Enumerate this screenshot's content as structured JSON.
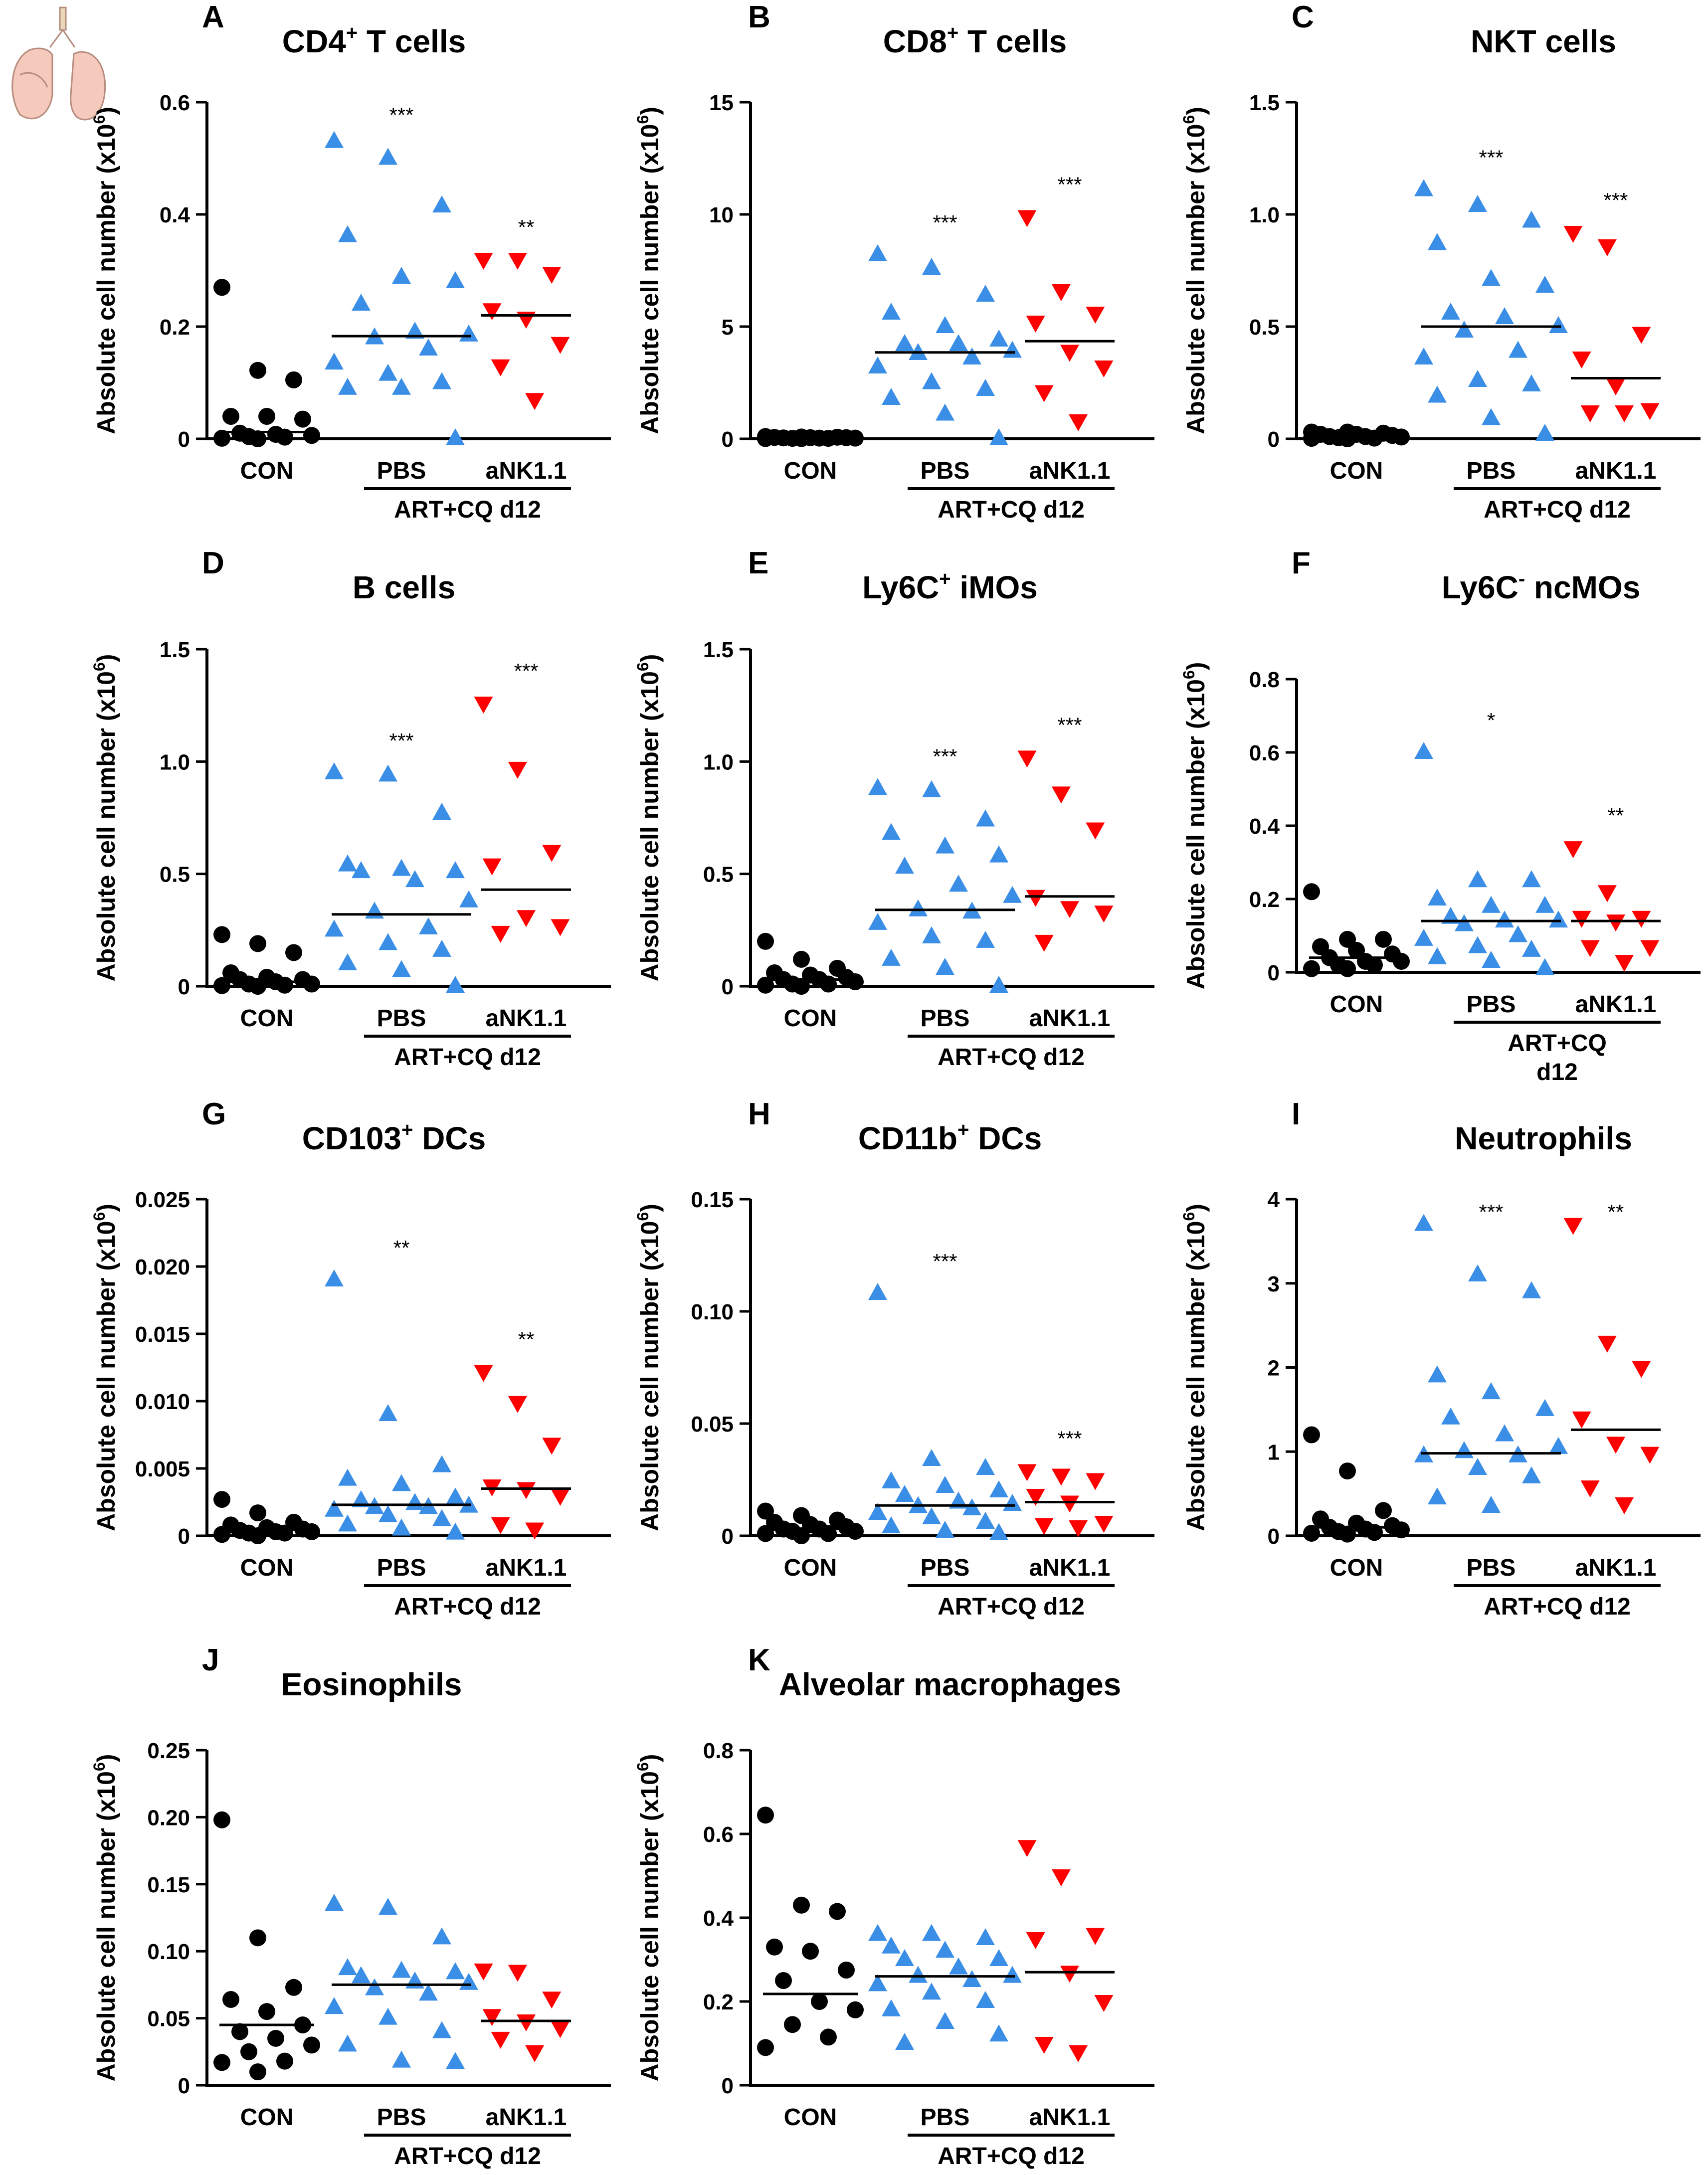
{
  "figure": {
    "shared": {
      "ylabel_main": "Absolute cell number (x10",
      "ylabel_sup": "6",
      "ylabel_close": ")",
      "group_labels": [
        "CON",
        "PBS",
        "aNK1.1"
      ],
      "treatment_label": "ART+CQ d12",
      "colors": {
        "con": "#000000",
        "pbs": "#3a8ee6",
        "nk": "#ff0000"
      },
      "icon": "lung-icon"
    }
  },
  "chart_data": [
    {
      "type": "scatter",
      "letter": "A",
      "title": "CD4+ T cells",
      "title_parts": [
        "CD4",
        "+",
        " T cells"
      ],
      "ylim": [
        0,
        0.6
      ],
      "yticks": [
        0,
        0.2,
        0.4,
        0.6
      ],
      "ytick_labels": [
        "0",
        "0.2",
        "0.4",
        "0.6"
      ],
      "categories": [
        "CON",
        "PBS",
        "aNK1.1"
      ],
      "treatment": "ART+CQ d12",
      "treatment_lines": [
        "ART+CQ d12"
      ],
      "series": [
        {
          "name": "CON",
          "marker": "circle",
          "median": 0.012,
          "values": [
            0.27,
            0.122,
            0.105,
            0.04,
            0.04,
            0.035,
            0.01,
            0.008,
            0.006,
            0.004,
            0.003,
            0.001,
            0.0
          ]
        },
        {
          "name": "PBS",
          "marker": "triangle-up",
          "median": 0.183,
          "values": [
            0.53,
            0.5,
            0.415,
            0.362,
            0.288,
            0.28,
            0.24,
            0.19,
            0.185,
            0.18,
            0.16,
            0.135,
            0.115,
            0.1,
            0.09,
            0.09,
            0.0
          ]
        },
        {
          "name": "aNK1.1",
          "marker": "triangle-down",
          "median": 0.22,
          "values": [
            0.32,
            0.32,
            0.295,
            0.23,
            0.215,
            0.17,
            0.13,
            0.07
          ]
        }
      ],
      "significance": [
        "",
        "***",
        "**"
      ]
    },
    {
      "type": "scatter",
      "letter": "B",
      "title": "CD8+ T cells",
      "title_parts": [
        "CD8",
        "+",
        " T cells"
      ],
      "ylim": [
        0,
        15
      ],
      "yticks": [
        0,
        5,
        10,
        15
      ],
      "ytick_labels": [
        "0",
        "5",
        "10",
        "15"
      ],
      "categories": [
        "CON",
        "PBS",
        "aNK1.1"
      ],
      "treatment": "ART+CQ d12",
      "treatment_lines": [
        "ART+CQ d12"
      ],
      "series": [
        {
          "name": "CON",
          "marker": "circle",
          "median": 0.05,
          "values": [
            0.1,
            0.08,
            0.07,
            0.06,
            0.05,
            0.05,
            0.04,
            0.03,
            0.03,
            0.02,
            0.02,
            0.01,
            0.01
          ]
        },
        {
          "name": "PBS",
          "marker": "triangle-up",
          "median": 3.85,
          "values": [
            8.2,
            7.6,
            6.4,
            5.6,
            5.0,
            4.4,
            4.2,
            4.2,
            3.9,
            3.8,
            3.6,
            3.2,
            2.5,
            2.2,
            1.8,
            1.1,
            0.0
          ]
        },
        {
          "name": "aNK1.1",
          "marker": "triangle-down",
          "median": 4.35,
          "values": [
            9.9,
            6.6,
            5.6,
            5.2,
            3.9,
            3.2,
            2.1,
            0.8
          ]
        }
      ],
      "significance": [
        "",
        "***",
        "***"
      ]
    },
    {
      "type": "scatter",
      "letter": "C",
      "title": "NKT cells",
      "title_parts": [
        "NKT cells",
        "",
        ""
      ],
      "ylim": [
        0,
        1.5
      ],
      "yticks": [
        0,
        0.5,
        1.0,
        1.5
      ],
      "ytick_labels": [
        "0",
        "0.5",
        "1.0",
        "1.5"
      ],
      "categories": [
        "CON",
        "PBS",
        "aNK1.1"
      ],
      "treatment": "ART+CQ d12",
      "treatment_lines": [
        "ART+CQ d12"
      ],
      "series": [
        {
          "name": "CON",
          "marker": "circle",
          "median": 0.01,
          "values": [
            0.03,
            0.03,
            0.025,
            0.02,
            0.02,
            0.015,
            0.01,
            0.01,
            0.008,
            0.005,
            0.003,
            0.002,
            0.0
          ]
        },
        {
          "name": "PBS",
          "marker": "triangle-up",
          "median": 0.5,
          "values": [
            1.11,
            1.04,
            0.97,
            0.87,
            0.71,
            0.68,
            0.56,
            0.54,
            0.5,
            0.48,
            0.39,
            0.36,
            0.26,
            0.24,
            0.19,
            0.09,
            0.02
          ]
        },
        {
          "name": "aNK1.1",
          "marker": "triangle-down",
          "median": 0.27,
          "values": [
            0.92,
            0.86,
            0.47,
            0.36,
            0.24,
            0.13,
            0.12,
            0.12
          ]
        }
      ],
      "significance": [
        "",
        "***",
        "***"
      ]
    },
    {
      "type": "scatter",
      "letter": "D",
      "title": "B cells",
      "title_parts": [
        "B cells",
        "",
        ""
      ],
      "ylim": [
        0,
        1.5
      ],
      "yticks": [
        0,
        0.5,
        1.0,
        1.5
      ],
      "ytick_labels": [
        "0",
        "0.5",
        "1.0",
        "1.5"
      ],
      "categories": [
        "CON",
        "PBS",
        "aNK1.1"
      ],
      "treatment": "ART+CQ d12",
      "treatment_lines": [
        "ART+CQ d12"
      ],
      "series": [
        {
          "name": "CON",
          "marker": "circle",
          "median": 0.02,
          "values": [
            0.23,
            0.19,
            0.15,
            0.06,
            0.04,
            0.03,
            0.03,
            0.02,
            0.01,
            0.01,
            0.005,
            0.003,
            0.0
          ]
        },
        {
          "name": "PBS",
          "marker": "triangle-up",
          "median": 0.32,
          "values": [
            0.95,
            0.94,
            0.77,
            0.54,
            0.52,
            0.51,
            0.51,
            0.47,
            0.38,
            0.33,
            0.26,
            0.25,
            0.19,
            0.16,
            0.1,
            0.07,
            0.0
          ]
        },
        {
          "name": "aNK1.1",
          "marker": "triangle-down",
          "median": 0.43,
          "values": [
            1.26,
            0.97,
            0.6,
            0.54,
            0.31,
            0.27,
            0.24
          ]
        }
      ],
      "significance": [
        "",
        "***",
        "***"
      ]
    },
    {
      "type": "scatter",
      "letter": "E",
      "title": "Ly6C+ iMOs",
      "title_parts": [
        "Ly6C",
        "+",
        " iMOs"
      ],
      "ylim": [
        0,
        1.5
      ],
      "yticks": [
        0,
        0.5,
        1.0,
        1.5
      ],
      "ytick_labels": [
        "0",
        "0.5",
        "1.0",
        "1.5"
      ],
      "categories": [
        "CON",
        "PBS",
        "aNK1.1"
      ],
      "treatment": "ART+CQ d12",
      "treatment_lines": [
        "ART+CQ d12"
      ],
      "series": [
        {
          "name": "CON",
          "marker": "circle",
          "median": 0.03,
          "values": [
            0.2,
            0.12,
            0.08,
            0.06,
            0.05,
            0.04,
            0.03,
            0.03,
            0.02,
            0.01,
            0.01,
            0.005,
            0.0
          ]
        },
        {
          "name": "PBS",
          "marker": "triangle-up",
          "median": 0.34,
          "values": [
            0.88,
            0.87,
            0.74,
            0.68,
            0.62,
            0.58,
            0.53,
            0.45,
            0.4,
            0.34,
            0.33,
            0.28,
            0.22,
            0.2,
            0.12,
            0.08,
            0.0
          ]
        },
        {
          "name": "aNK1.1",
          "marker": "triangle-down",
          "median": 0.4,
          "values": [
            1.02,
            0.86,
            0.7,
            0.4,
            0.35,
            0.33,
            0.2
          ]
        }
      ],
      "significance": [
        "",
        "***",
        "***"
      ]
    },
    {
      "type": "scatter",
      "letter": "F",
      "title": "Ly6C- ncMOs",
      "title_parts": [
        "Ly6C",
        "-",
        " ncMOs"
      ],
      "ylim": [
        0,
        0.8
      ],
      "yticks": [
        0,
        0.2,
        0.4,
        0.6,
        0.8
      ],
      "ytick_labels": [
        "0",
        "0.2",
        "0.4",
        "0.6",
        "0.8"
      ],
      "categories": [
        "CON",
        "PBS",
        "aNK1.1"
      ],
      "treatment": "ART+CQ d12",
      "treatment_lines": [
        "ART+CQ",
        "d12"
      ],
      "series": [
        {
          "name": "CON",
          "marker": "circle",
          "median": 0.04,
          "values": [
            0.22,
            0.09,
            0.09,
            0.07,
            0.06,
            0.05,
            0.04,
            0.03,
            0.03,
            0.02,
            0.02,
            0.01,
            0.01
          ]
        },
        {
          "name": "PBS",
          "marker": "triangle-up",
          "median": 0.14,
          "values": [
            0.6,
            0.25,
            0.25,
            0.2,
            0.18,
            0.18,
            0.15,
            0.14,
            0.14,
            0.13,
            0.1,
            0.09,
            0.07,
            0.06,
            0.04,
            0.03,
            0.01
          ]
        },
        {
          "name": "aNK1.1",
          "marker": "triangle-down",
          "median": 0.14,
          "values": [
            0.34,
            0.22,
            0.15,
            0.15,
            0.14,
            0.07,
            0.07,
            0.03
          ]
        }
      ],
      "significance": [
        "",
        "*",
        "**"
      ]
    },
    {
      "type": "scatter",
      "letter": "G",
      "title": "CD103+ DCs",
      "title_parts": [
        "CD103",
        "+",
        " DCs"
      ],
      "ylim": [
        0,
        0.025
      ],
      "yticks": [
        0,
        0.005,
        0.01,
        0.015,
        0.02,
        0.025
      ],
      "ytick_labels": [
        "0",
        "0.005",
        "0.010",
        "0.015",
        "0.020",
        "0.025"
      ],
      "categories": [
        "CON",
        "PBS",
        "aNK1.1"
      ],
      "treatment": "ART+CQ d12",
      "treatment_lines": [
        "ART+CQ d12"
      ],
      "series": [
        {
          "name": "CON",
          "marker": "circle",
          "median": 0.0005,
          "values": [
            0.0027,
            0.0017,
            0.001,
            0.0008,
            0.0006,
            0.0005,
            0.0004,
            0.0003,
            0.0003,
            0.0002,
            0.0002,
            0.0001,
            0.0
          ]
        },
        {
          "name": "PBS",
          "marker": "triangle-up",
          "median": 0.0023,
          "values": [
            0.019,
            0.009,
            0.0052,
            0.0042,
            0.0038,
            0.0028,
            0.0026,
            0.0024,
            0.0022,
            0.0021,
            0.0021,
            0.0019,
            0.0015,
            0.0012,
            0.0008,
            0.0005,
            0.0002
          ]
        },
        {
          "name": "aNK1.1",
          "marker": "triangle-down",
          "median": 0.0035,
          "values": [
            0.0122,
            0.0099,
            0.0068,
            0.0037,
            0.0035,
            0.003,
            0.0009,
            0.0005
          ]
        }
      ],
      "significance": [
        "",
        "**",
        "**"
      ]
    },
    {
      "type": "scatter",
      "letter": "H",
      "title": "CD11b+ DCs",
      "title_parts": [
        "CD11b",
        "+",
        " DCs"
      ],
      "ylim": [
        0,
        0.15
      ],
      "yticks": [
        0,
        0.05,
        0.1,
        0.15
      ],
      "ytick_labels": [
        "0",
        "0.05",
        "0.10",
        "0.15"
      ],
      "categories": [
        "CON",
        "PBS",
        "aNK1.1"
      ],
      "treatment": "ART+CQ d12",
      "treatment_lines": [
        "ART+CQ d12"
      ],
      "series": [
        {
          "name": "CON",
          "marker": "circle",
          "median": 0.003,
          "values": [
            0.011,
            0.009,
            0.007,
            0.006,
            0.005,
            0.004,
            0.003,
            0.003,
            0.002,
            0.002,
            0.001,
            0.001,
            0.0
          ]
        },
        {
          "name": "PBS",
          "marker": "triangle-up",
          "median": 0.0135,
          "values": [
            0.108,
            0.034,
            0.03,
            0.024,
            0.022,
            0.02,
            0.018,
            0.015,
            0.014,
            0.013,
            0.012,
            0.01,
            0.008,
            0.006,
            0.004,
            0.002,
            0.001
          ]
        },
        {
          "name": "aNK1.1",
          "marker": "triangle-down",
          "median": 0.015,
          "values": [
            0.029,
            0.027,
            0.025,
            0.018,
            0.015,
            0.006,
            0.005,
            0.004
          ]
        }
      ],
      "significance": [
        "",
        "***",
        "***"
      ]
    },
    {
      "type": "scatter",
      "letter": "I",
      "title": "Neutrophils",
      "title_parts": [
        "Neutrophils",
        "",
        ""
      ],
      "ylim": [
        0,
        4
      ],
      "yticks": [
        0,
        1,
        2,
        3,
        4
      ],
      "ytick_labels": [
        "0",
        "1",
        "2",
        "3",
        "4"
      ],
      "categories": [
        "CON",
        "PBS",
        "aNK1.1"
      ],
      "treatment": "ART+CQ d12",
      "treatment_lines": [
        "ART+CQ d12"
      ],
      "series": [
        {
          "name": "CON",
          "marker": "circle",
          "median": 0.1,
          "values": [
            1.2,
            0.77,
            0.3,
            0.2,
            0.15,
            0.12,
            0.1,
            0.08,
            0.07,
            0.05,
            0.04,
            0.03,
            0.02
          ]
        },
        {
          "name": "PBS",
          "marker": "triangle-up",
          "median": 0.98,
          "values": [
            3.7,
            3.1,
            2.9,
            1.9,
            1.7,
            1.5,
            1.4,
            1.2,
            1.05,
            1.0,
            0.95,
            0.95,
            0.8,
            0.7,
            0.45,
            0.35
          ]
        },
        {
          "name": "aNK1.1",
          "marker": "triangle-down",
          "median": 1.26,
          "values": [
            3.7,
            2.3,
            2.0,
            1.4,
            1.1,
            0.98,
            0.58,
            0.38
          ]
        }
      ],
      "significance": [
        "",
        "***",
        "**"
      ]
    },
    {
      "type": "scatter",
      "letter": "J",
      "title": "Eosinophils",
      "title_parts": [
        "Eosinophils",
        "",
        ""
      ],
      "ylim": [
        0,
        0.25
      ],
      "yticks": [
        0,
        0.05,
        0.1,
        0.15,
        0.2,
        0.25
      ],
      "ytick_labels": [
        "0",
        "0.05",
        "0.10",
        "0.15",
        "0.20",
        "0.25"
      ],
      "categories": [
        "CON",
        "PBS",
        "aNK1.1"
      ],
      "treatment": "ART+CQ d12",
      "treatment_lines": [
        "ART+CQ d12"
      ],
      "series": [
        {
          "name": "CON",
          "marker": "circle",
          "median": 0.045,
          "values": [
            0.198,
            0.11,
            0.073,
            0.064,
            0.055,
            0.045,
            0.04,
            0.035,
            0.03,
            0.025,
            0.018,
            0.017,
            0.01
          ]
        },
        {
          "name": "PBS",
          "marker": "triangle-up",
          "median": 0.075,
          "values": [
            0.135,
            0.132,
            0.11,
            0.087,
            0.085,
            0.084,
            0.081,
            0.077,
            0.076,
            0.072,
            0.068,
            0.058,
            0.05,
            0.04,
            0.03,
            0.018,
            0.017
          ]
        },
        {
          "name": "aNK1.1",
          "marker": "triangle-down",
          "median": 0.048,
          "values": [
            0.086,
            0.085,
            0.065,
            0.052,
            0.048,
            0.043,
            0.035,
            0.025
          ]
        }
      ],
      "significance": [
        "",
        "",
        ""
      ]
    },
    {
      "type": "scatter",
      "letter": "K",
      "title": "Alveolar macrophages",
      "title_parts": [
        "Alveolar macrophages",
        "",
        ""
      ],
      "ylim": [
        0,
        0.8
      ],
      "yticks": [
        0,
        0.2,
        0.4,
        0.6,
        0.8
      ],
      "ytick_labels": [
        "0",
        "0.2",
        "0.4",
        "0.6",
        "0.8"
      ],
      "categories": [
        "CON",
        "PBS",
        "aNK1.1"
      ],
      "treatment": "ART+CQ d12",
      "treatment_lines": [
        "ART+CQ d12"
      ],
      "series": [
        {
          "name": "CON",
          "marker": "circle",
          "median": 0.218,
          "values": [
            0.645,
            0.43,
            0.415,
            0.33,
            0.32,
            0.275,
            0.25,
            0.2,
            0.18,
            0.145,
            0.115,
            0.09
          ]
        },
        {
          "name": "PBS",
          "marker": "triangle-up",
          "median": 0.26,
          "values": [
            0.36,
            0.36,
            0.35,
            0.33,
            0.32,
            0.3,
            0.3,
            0.28,
            0.26,
            0.26,
            0.25,
            0.24,
            0.22,
            0.2,
            0.18,
            0.15,
            0.12,
            0.1
          ]
        },
        {
          "name": "aNK1.1",
          "marker": "triangle-down",
          "median": 0.27,
          "values": [
            0.57,
            0.5,
            0.36,
            0.35,
            0.27,
            0.2,
            0.1,
            0.08
          ]
        }
      ],
      "significance": [
        "",
        "",
        ""
      ]
    }
  ]
}
